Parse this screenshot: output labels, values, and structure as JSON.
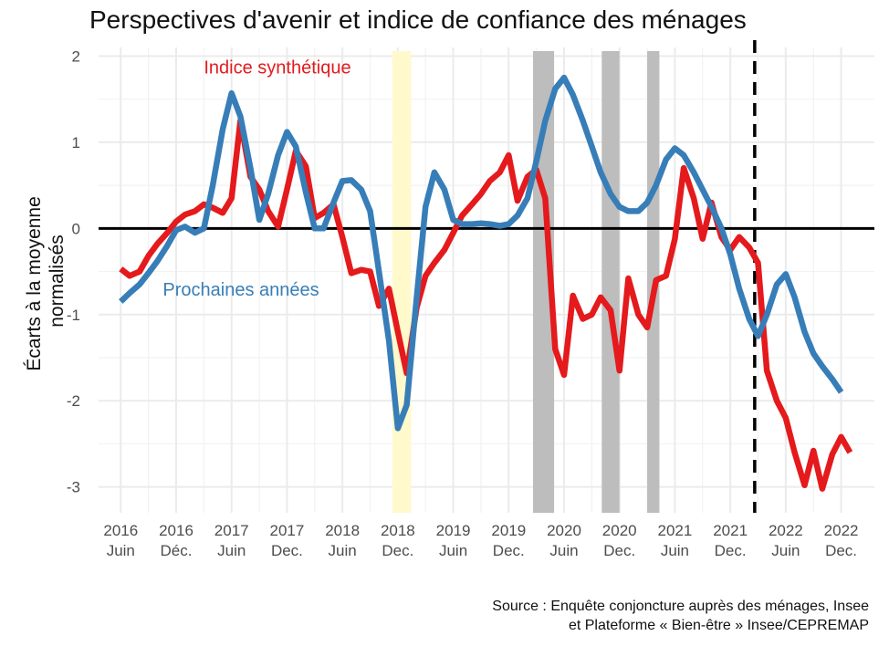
{
  "chart_data": {
    "type": "line",
    "title": "Perspectives d'avenir et indice de confiance des ménages",
    "ylabel_lines": [
      "Écarts à la moyenne",
      "normalisés"
    ],
    "ylim": [
      -3.3,
      2.1
    ],
    "y_ticks": [
      2,
      1,
      0,
      -1,
      -2,
      -3
    ],
    "y_tick_labels": [
      "2",
      "1",
      "0",
      "-1",
      "-2",
      "-3"
    ],
    "x_ticks": [
      {
        "x": 2016.5,
        "year": "2016",
        "sub": "Juin"
      },
      {
        "x": 2017.0,
        "year": "2016",
        "sub": "Déc."
      },
      {
        "x": 2017.5,
        "year": "2017",
        "sub": "Juin"
      },
      {
        "x": 2018.0,
        "year": "2017",
        "sub": "Dec."
      },
      {
        "x": 2018.5,
        "year": "2018",
        "sub": "Juin"
      },
      {
        "x": 2019.0,
        "year": "2018",
        "sub": "Dec."
      },
      {
        "x": 2019.5,
        "year": "2019",
        "sub": "Juin"
      },
      {
        "x": 2020.0,
        "year": "2019",
        "sub": "Dec."
      },
      {
        "x": 2020.5,
        "year": "2020",
        "sub": "Juin"
      },
      {
        "x": 2021.0,
        "year": "2020",
        "sub": "Dec."
      },
      {
        "x": 2021.5,
        "year": "2021",
        "sub": "Juin"
      },
      {
        "x": 2022.0,
        "year": "2021",
        "sub": "Dec."
      },
      {
        "x": 2022.5,
        "year": "2022",
        "sub": "Juin"
      },
      {
        "x": 2023.0,
        "year": "2022",
        "sub": "Dec."
      }
    ],
    "xlim": [
      2016.3,
      2023.3
    ],
    "zero_line": 0,
    "vline_dashed": 2022.22,
    "shaded_periods": [
      {
        "x0": 2018.95,
        "x1": 2019.12,
        "color": "#fff9cc"
      },
      {
        "x0": 2020.22,
        "x1": 2020.41,
        "color": "#bdbdbd"
      },
      {
        "x0": 2020.84,
        "x1": 2021.0,
        "color": "#bdbdbd"
      },
      {
        "x0": 2021.25,
        "x1": 2021.36,
        "color": "#bdbdbd"
      }
    ],
    "series": [
      {
        "name": "Indice synthétique",
        "color": "#e41a1c",
        "label_position": [
          2017.25,
          1.8
        ],
        "points": [
          [
            2016.5,
            -0.47
          ],
          [
            2016.58,
            -0.55
          ],
          [
            2016.67,
            -0.5
          ],
          [
            2016.75,
            -0.32
          ],
          [
            2016.83,
            -0.18
          ],
          [
            2016.92,
            -0.05
          ],
          [
            2017.0,
            0.08
          ],
          [
            2017.08,
            0.16
          ],
          [
            2017.17,
            0.2
          ],
          [
            2017.25,
            0.28
          ],
          [
            2017.33,
            0.24
          ],
          [
            2017.42,
            0.18
          ],
          [
            2017.5,
            0.35
          ],
          [
            2017.58,
            1.25
          ],
          [
            2017.67,
            0.6
          ],
          [
            2017.75,
            0.45
          ],
          [
            2017.83,
            0.2
          ],
          [
            2017.92,
            0.02
          ],
          [
            2018.0,
            0.45
          ],
          [
            2018.08,
            0.9
          ],
          [
            2018.17,
            0.72
          ],
          [
            2018.25,
            0.12
          ],
          [
            2018.33,
            0.18
          ],
          [
            2018.42,
            0.28
          ],
          [
            2018.5,
            -0.1
          ],
          [
            2018.58,
            -0.52
          ],
          [
            2018.67,
            -0.48
          ],
          [
            2018.75,
            -0.5
          ],
          [
            2018.83,
            -0.9
          ],
          [
            2018.92,
            -0.7
          ],
          [
            2019.0,
            -1.2
          ],
          [
            2019.08,
            -1.68
          ],
          [
            2019.17,
            -0.92
          ],
          [
            2019.25,
            -0.55
          ],
          [
            2019.33,
            -0.4
          ],
          [
            2019.42,
            -0.25
          ],
          [
            2019.5,
            -0.05
          ],
          [
            2019.58,
            0.15
          ],
          [
            2019.67,
            0.28
          ],
          [
            2019.75,
            0.4
          ],
          [
            2019.83,
            0.55
          ],
          [
            2019.92,
            0.65
          ],
          [
            2020.0,
            0.85
          ],
          [
            2020.08,
            0.32
          ],
          [
            2020.17,
            0.6
          ],
          [
            2020.25,
            0.68
          ],
          [
            2020.33,
            0.35
          ],
          [
            2020.42,
            -1.4
          ],
          [
            2020.5,
            -1.7
          ],
          [
            2020.58,
            -0.78
          ],
          [
            2020.67,
            -1.05
          ],
          [
            2020.75,
            -1.0
          ],
          [
            2020.83,
            -0.8
          ],
          [
            2020.92,
            -0.95
          ],
          [
            2021.0,
            -1.65
          ],
          [
            2021.08,
            -0.58
          ],
          [
            2021.17,
            -1.0
          ],
          [
            2021.25,
            -1.15
          ],
          [
            2021.33,
            -0.6
          ],
          [
            2021.42,
            -0.55
          ],
          [
            2021.5,
            -0.12
          ],
          [
            2021.58,
            0.7
          ],
          [
            2021.67,
            0.35
          ],
          [
            2021.75,
            -0.12
          ],
          [
            2021.83,
            0.3
          ],
          [
            2021.92,
            -0.1
          ],
          [
            2022.0,
            -0.25
          ],
          [
            2022.08,
            -0.1
          ],
          [
            2022.17,
            -0.22
          ],
          [
            2022.25,
            -0.4
          ],
          [
            2022.33,
            -1.65
          ],
          [
            2022.42,
            -2.0
          ],
          [
            2022.5,
            -2.2
          ],
          [
            2022.58,
            -2.6
          ],
          [
            2022.67,
            -2.98
          ],
          [
            2022.75,
            -2.58
          ],
          [
            2022.83,
            -3.02
          ],
          [
            2022.92,
            -2.62
          ],
          [
            2023.0,
            -2.42
          ],
          [
            2023.08,
            -2.6
          ]
        ]
      },
      {
        "name": "Prochaines années",
        "color": "#377eb8",
        "label_position": [
          2016.88,
          -0.78
        ],
        "points": [
          [
            2016.5,
            -0.85
          ],
          [
            2016.58,
            -0.75
          ],
          [
            2016.67,
            -0.65
          ],
          [
            2016.75,
            -0.52
          ],
          [
            2016.83,
            -0.38
          ],
          [
            2016.92,
            -0.2
          ],
          [
            2017.0,
            -0.02
          ],
          [
            2017.08,
            0.02
          ],
          [
            2017.17,
            -0.05
          ],
          [
            2017.25,
            0.0
          ],
          [
            2017.33,
            0.5
          ],
          [
            2017.42,
            1.15
          ],
          [
            2017.5,
            1.57
          ],
          [
            2017.58,
            1.3
          ],
          [
            2017.67,
            0.7
          ],
          [
            2017.75,
            0.1
          ],
          [
            2017.83,
            0.4
          ],
          [
            2017.92,
            0.85
          ],
          [
            2018.0,
            1.12
          ],
          [
            2018.08,
            0.95
          ],
          [
            2018.17,
            0.42
          ],
          [
            2018.25,
            0.0
          ],
          [
            2018.33,
            0.0
          ],
          [
            2018.42,
            0.3
          ],
          [
            2018.5,
            0.55
          ],
          [
            2018.58,
            0.56
          ],
          [
            2018.67,
            0.45
          ],
          [
            2018.75,
            0.2
          ],
          [
            2018.83,
            -0.5
          ],
          [
            2018.92,
            -1.3
          ],
          [
            2019.0,
            -2.32
          ],
          [
            2019.08,
            -2.05
          ],
          [
            2019.17,
            -0.8
          ],
          [
            2019.25,
            0.25
          ],
          [
            2019.33,
            0.65
          ],
          [
            2019.42,
            0.45
          ],
          [
            2019.5,
            0.1
          ],
          [
            2019.58,
            0.05
          ],
          [
            2019.67,
            0.05
          ],
          [
            2019.75,
            0.06
          ],
          [
            2019.83,
            0.05
          ],
          [
            2019.92,
            0.03
          ],
          [
            2020.0,
            0.05
          ],
          [
            2020.08,
            0.15
          ],
          [
            2020.17,
            0.35
          ],
          [
            2020.25,
            0.78
          ],
          [
            2020.33,
            1.25
          ],
          [
            2020.42,
            1.62
          ],
          [
            2020.5,
            1.75
          ],
          [
            2020.58,
            1.55
          ],
          [
            2020.67,
            1.25
          ],
          [
            2020.75,
            0.95
          ],
          [
            2020.83,
            0.65
          ],
          [
            2020.92,
            0.4
          ],
          [
            2021.0,
            0.25
          ],
          [
            2021.08,
            0.2
          ],
          [
            2021.17,
            0.2
          ],
          [
            2021.25,
            0.3
          ],
          [
            2021.33,
            0.5
          ],
          [
            2021.42,
            0.8
          ],
          [
            2021.5,
            0.93
          ],
          [
            2021.58,
            0.85
          ],
          [
            2021.67,
            0.65
          ],
          [
            2021.75,
            0.45
          ],
          [
            2021.83,
            0.25
          ],
          [
            2021.92,
            0.0
          ],
          [
            2022.0,
            -0.3
          ],
          [
            2022.08,
            -0.7
          ],
          [
            2022.17,
            -1.05
          ],
          [
            2022.25,
            -1.25
          ],
          [
            2022.33,
            -1.0
          ],
          [
            2022.42,
            -0.65
          ],
          [
            2022.5,
            -0.53
          ],
          [
            2022.58,
            -0.8
          ],
          [
            2022.67,
            -1.2
          ],
          [
            2022.75,
            -1.45
          ],
          [
            2022.83,
            -1.6
          ],
          [
            2022.92,
            -1.75
          ],
          [
            2023.0,
            -1.9
          ]
        ]
      }
    ]
  },
  "source": {
    "line1": "Source : Enquête conjoncture auprès des ménages, Insee",
    "line2": "et Plateforme « Bien-être » Insee/CEPREMAP"
  }
}
